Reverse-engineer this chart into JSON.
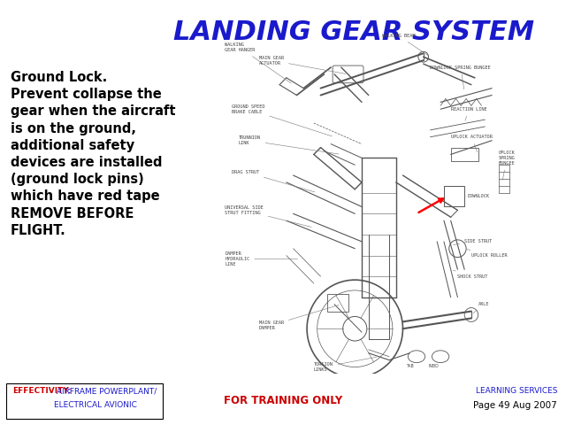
{
  "title": "LANDING GEAR SYSTEM",
  "title_color": "#1A1ACC",
  "title_fontsize": 22,
  "background_color": "#ffffff",
  "body_text": "Ground Lock.\nPrevent collapse the\ngear when the aircraft\nis on the ground,\nadditional safety\ndevices are installed\n(ground lock pins)\nwhich have red tape\nREMOVE BEFORE\nFLIGHT.",
  "body_fontsize": 10.5,
  "footer_left_label": "EFFECTIVITY:",
  "footer_left_text": " AIRFRAME POWERPLANT/\nELECTRICAL AVIONIC",
  "footer_center_text": "FOR TRAINING ONLY",
  "footer_right_text1": "LEARNING SERVICES",
  "footer_right_text2": "Page 49 Aug 2007",
  "footer_red_color": "#CC0000",
  "footer_blue_color": "#1A1ACC",
  "footer_center_color": "#CC0000",
  "footer_fontsize": 6.5,
  "line_color": "#555555",
  "label_color": "#444444",
  "label_fontsize": 3.8
}
